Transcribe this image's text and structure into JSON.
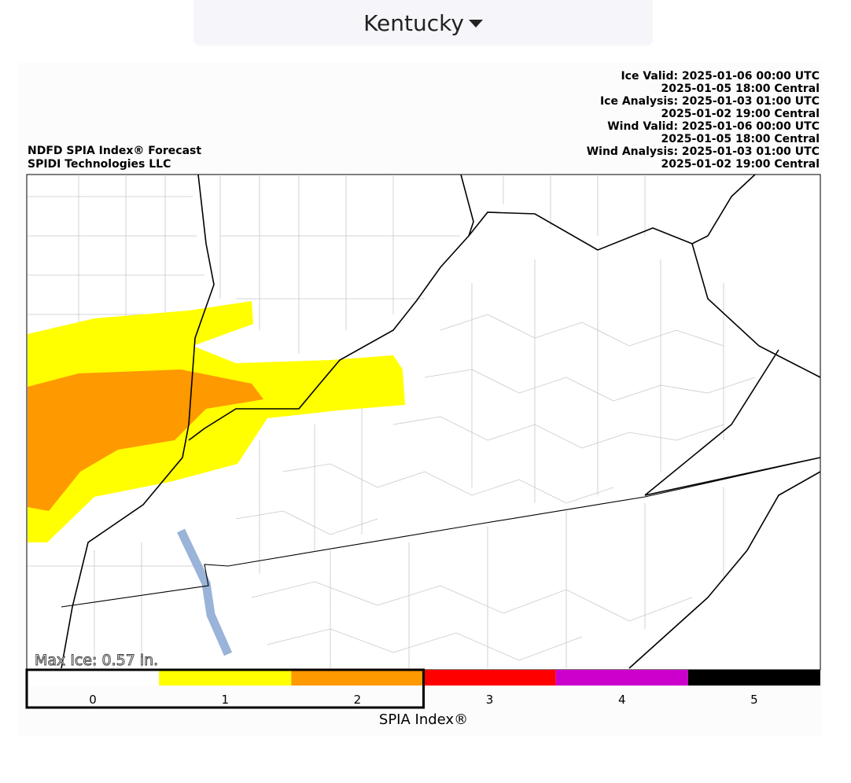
{
  "dropdown": {
    "label": "Kentucky"
  },
  "map": {
    "title_lines": [
      "NDFD SPIA Index® Forecast",
      "SPIDI Technologies LLC"
    ],
    "time_lines": [
      "Ice Valid: 2025-01-06 00:00 UTC",
      "2025-01-05 18:00 Central",
      "Ice Analysis: 2025-01-03 01:00 UTC",
      "2025-01-02 19:00 Central",
      "Wind Valid: 2025-01-06 00:00 UTC",
      "2025-01-05 18:00 Central",
      "Wind Analysis: 2025-01-03 01:00 UTC",
      "2025-01-02 19:00 Central"
    ],
    "max_ice": "Max Ice: 0.57 in."
  },
  "colorbar": {
    "title": "SPIA Index®",
    "labels": [
      0,
      1,
      2,
      3,
      4,
      5
    ],
    "colors": [
      "#ffffff",
      "#ffff00",
      "#ff9900",
      "#ff0000",
      "#cc00cc",
      "#000000"
    ]
  }
}
